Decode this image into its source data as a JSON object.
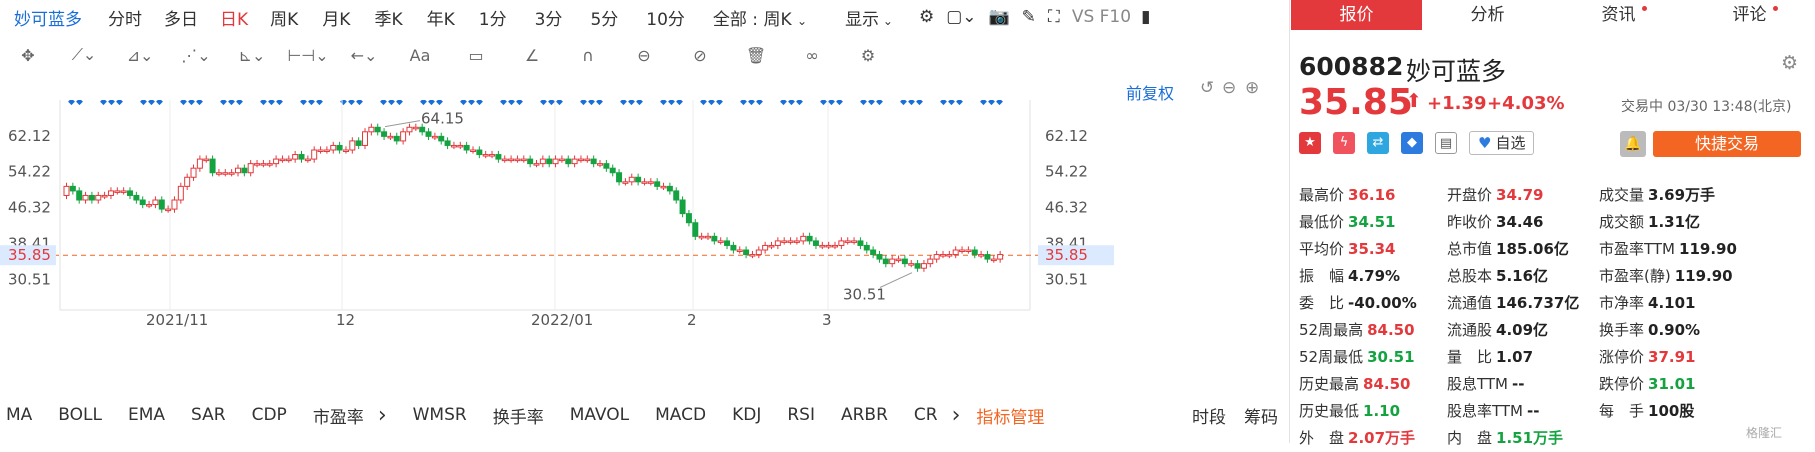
{
  "toolbar": {
    "stock_name": "妙可蓝多",
    "periods": [
      "分时",
      "多日",
      "日K",
      "周K",
      "月K",
      "季K",
      "年K",
      "1分",
      "3分",
      "5分",
      "10分"
    ],
    "selected_period": "日K",
    "range_select": "全部 : 周K",
    "display_label": "显示",
    "vs_label": "VS F10"
  },
  "chart_header": {
    "adjust_label": "前复权"
  },
  "chart_data": {
    "type": "candlestick",
    "y_ticks": [
      "62.12",
      "54.22",
      "46.32",
      "38.41",
      "30.51"
    ],
    "current_price_label": "35.85",
    "high_annotation": "64.15",
    "low_annotation": "30.51",
    "x_ticks": [
      "2021/11",
      "12",
      "2022/01",
      "2",
      "3"
    ],
    "ylim": [
      26,
      70
    ],
    "closes": [
      51,
      50,
      48,
      49,
      48,
      49,
      49,
      50,
      50,
      50,
      49,
      48,
      47,
      47,
      48,
      46,
      46,
      48,
      51,
      53,
      55,
      57,
      57,
      54,
      54,
      54,
      54,
      55,
      54,
      56,
      56,
      56,
      56,
      57,
      57,
      57,
      58,
      57,
      57,
      59,
      59,
      59,
      60,
      59,
      59,
      61,
      60,
      63,
      64,
      63,
      62,
      62,
      61,
      63,
      64,
      64,
      63,
      62,
      62,
      61,
      60,
      60,
      60,
      59,
      59,
      58,
      58,
      58,
      57,
      57,
      57,
      57,
      57,
      56,
      56,
      57,
      56,
      57,
      57,
      56,
      57,
      57,
      57,
      56,
      56,
      55,
      54,
      52,
      52,
      53,
      52,
      52,
      52,
      51,
      51,
      50,
      48,
      45,
      43,
      40,
      40,
      40,
      39,
      39,
      38,
      37,
      37,
      36,
      36,
      37,
      38,
      38,
      39,
      39,
      39,
      39,
      40,
      39,
      38,
      38,
      38,
      38,
      39,
      39,
      39,
      38,
      37,
      36,
      35,
      34,
      35,
      35,
      34,
      34,
      33,
      34,
      35,
      36,
      36,
      36,
      37,
      37,
      37,
      36,
      36,
      35,
      35,
      36
    ],
    "opens": [
      49,
      51,
      50,
      48,
      49,
      48,
      49,
      49,
      50,
      50,
      50,
      49,
      48,
      47,
      47,
      48,
      46,
      46,
      48,
      51,
      53,
      55,
      57,
      57,
      54,
      54,
      54,
      54,
      55,
      54,
      56,
      56,
      56,
      56,
      57,
      57,
      57,
      58,
      57,
      57,
      59,
      59,
      59,
      60,
      59,
      59,
      61,
      60,
      63,
      64,
      63,
      62,
      62,
      61,
      63,
      64,
      64,
      63,
      62,
      62,
      61,
      60,
      60,
      60,
      59,
      59,
      58,
      58,
      58,
      57,
      57,
      57,
      57,
      57,
      56,
      56,
      57,
      56,
      57,
      57,
      56,
      57,
      57,
      57,
      56,
      56,
      55,
      54,
      52,
      52,
      53,
      52,
      52,
      52,
      51,
      51,
      50,
      48,
      45,
      43,
      40,
      40,
      40,
      39,
      39,
      38,
      37,
      37,
      36,
      36,
      37,
      38,
      38,
      39,
      39,
      39,
      39,
      40,
      39,
      38,
      38,
      38,
      38,
      39,
      39,
      39,
      38,
      37,
      36,
      35,
      34,
      35,
      35,
      34,
      34,
      33,
      34,
      35,
      36,
      36,
      36,
      37,
      37,
      37,
      36,
      36,
      35,
      35
    ]
  },
  "indicators": [
    "MA",
    "BOLL",
    "EMA",
    "SAR",
    "CDP",
    "市盈率",
    "WMSR",
    "换手率",
    "MAVOL",
    "MACD",
    "KDJ",
    "RSI",
    "ARBR",
    "CR"
  ],
  "indicator_manage": "指标管理",
  "bottom_right": [
    "时段",
    "筹码"
  ],
  "quote": {
    "tabs": [
      "报价",
      "分析",
      "资讯",
      "评论"
    ],
    "code": "600882",
    "name": "妙可蓝多",
    "price": "35.85",
    "change": "+1.39",
    "change_pct": "+4.03%",
    "status": "交易中 03/30 13:48(北京)",
    "watch_label": "自选",
    "trade_label": "快捷交易",
    "stats": [
      [
        {
          "k": "最高价",
          "v": "36.16",
          "c": "red"
        },
        {
          "k": "开盘价",
          "v": "34.79",
          "c": "red"
        },
        {
          "k": "成交量",
          "v": "3.69万手",
          "c": ""
        }
      ],
      [
        {
          "k": "最低价",
          "v": "34.51",
          "c": "grn"
        },
        {
          "k": "昨收价",
          "v": "34.46",
          "c": ""
        },
        {
          "k": "成交额",
          "v": "1.31亿",
          "c": ""
        }
      ],
      [
        {
          "k": "平均价",
          "v": "35.34",
          "c": "red"
        },
        {
          "k": "总市值",
          "v": "185.06亿",
          "c": ""
        },
        {
          "k": "市盈率TTM",
          "v": "119.90",
          "c": ""
        }
      ],
      [
        {
          "k": "振　幅",
          "v": "4.79%",
          "c": ""
        },
        {
          "k": "总股本",
          "v": "5.16亿",
          "c": ""
        },
        {
          "k": "市盈率(静)",
          "v": "119.90",
          "c": ""
        }
      ],
      [
        {
          "k": "委　比",
          "v": "-40.00%",
          "c": ""
        },
        {
          "k": "流通值",
          "v": "146.737亿",
          "c": ""
        },
        {
          "k": "市净率",
          "v": "4.101",
          "c": ""
        }
      ],
      [
        {
          "k": "52周最高",
          "v": "84.50",
          "c": "red"
        },
        {
          "k": "流通股",
          "v": "4.09亿",
          "c": ""
        },
        {
          "k": "换手率",
          "v": "0.90%",
          "c": ""
        }
      ],
      [
        {
          "k": "52周最低",
          "v": "30.51",
          "c": "grn"
        },
        {
          "k": "量　比",
          "v": "1.07",
          "c": ""
        },
        {
          "k": "涨停价",
          "v": "37.91",
          "c": "red"
        }
      ],
      [
        {
          "k": "历史最高",
          "v": "84.50",
          "c": "red"
        },
        {
          "k": "股息TTM",
          "v": "--",
          "c": ""
        },
        {
          "k": "跌停价",
          "v": "31.01",
          "c": "grn"
        }
      ],
      [
        {
          "k": "历史最低",
          "v": "1.10",
          "c": "grn"
        },
        {
          "k": "股息率TTM",
          "v": "--",
          "c": ""
        },
        {
          "k": "每　手",
          "v": "100股",
          "c": ""
        }
      ],
      [
        {
          "k": "外　盘",
          "v": "2.07万手",
          "c": "red"
        },
        {
          "k": "内　盘",
          "v": "1.51万手",
          "c": "grn"
        },
        {
          "k": "",
          "v": "",
          "c": ""
        }
      ]
    ],
    "watermark": "格隆汇"
  },
  "colors": {
    "up": "#e3393c",
    "down": "#15a341",
    "accent": "#1a6ed8",
    "trade": "#f26522"
  }
}
